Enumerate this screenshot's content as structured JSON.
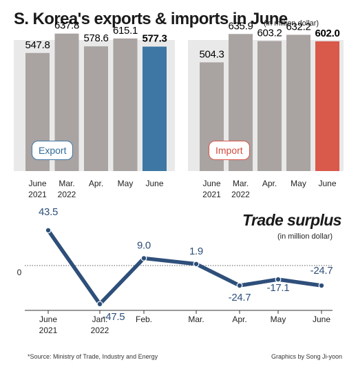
{
  "title": "S. Korea's exports & imports in June",
  "title_unit": "(in million dollar)",
  "export_tag": "Export",
  "import_tag": "Import",
  "line_title": "Trade surplus",
  "line_unit": "(in million dollar)",
  "source": "*Source: Ministry of Trade, Industry and Energy",
  "credit": "Graphics by Song Ji-yoon",
  "colors": {
    "bar": "#a9a3a2",
    "export": "#3e77a4",
    "import": "#d9594a",
    "line": "#2e4f7a",
    "panel": "#e9e9e9"
  },
  "chart_data": [
    {
      "type": "bar",
      "name": "exports",
      "categories": [
        [
          "June",
          "2021"
        ],
        [
          "Mar.",
          "2022"
        ],
        [
          "Apr."
        ],
        [
          "May"
        ],
        [
          "June"
        ]
      ],
      "values": [
        547.8,
        637.8,
        578.6,
        615.1,
        577.3
      ],
      "value_labels": [
        "547.8",
        "637.8",
        "578.6",
        "615.1",
        "577.3"
      ],
      "highlight_index": 4
    },
    {
      "type": "bar",
      "name": "imports",
      "categories": [
        [
          "June",
          "2021"
        ],
        [
          "Mar.",
          "2022"
        ],
        [
          "Apr."
        ],
        [
          "May"
        ],
        [
          "June"
        ]
      ],
      "values": [
        504.3,
        635.9,
        603.2,
        632.2,
        602.0
      ],
      "value_labels": [
        "504.3",
        "635.9",
        "603.2",
        "632.2",
        "602.0"
      ],
      "highlight_index": 4
    },
    {
      "type": "line",
      "name": "trade_surplus",
      "categories": [
        [
          "June",
          "2021"
        ],
        [
          "Jan.",
          "2022"
        ],
        [
          "Feb."
        ],
        [
          "Mar."
        ],
        [
          "Apr."
        ],
        [
          "May"
        ],
        [
          "June"
        ]
      ],
      "values": [
        43.5,
        -47.5,
        9.0,
        1.9,
        -24.7,
        -17.1,
        -24.7
      ],
      "value_labels": [
        "43.5",
        "-47.5",
        "9.0",
        "1.9",
        "-24.7",
        "-17.1",
        "-24.7"
      ],
      "zero_label": "0"
    }
  ]
}
